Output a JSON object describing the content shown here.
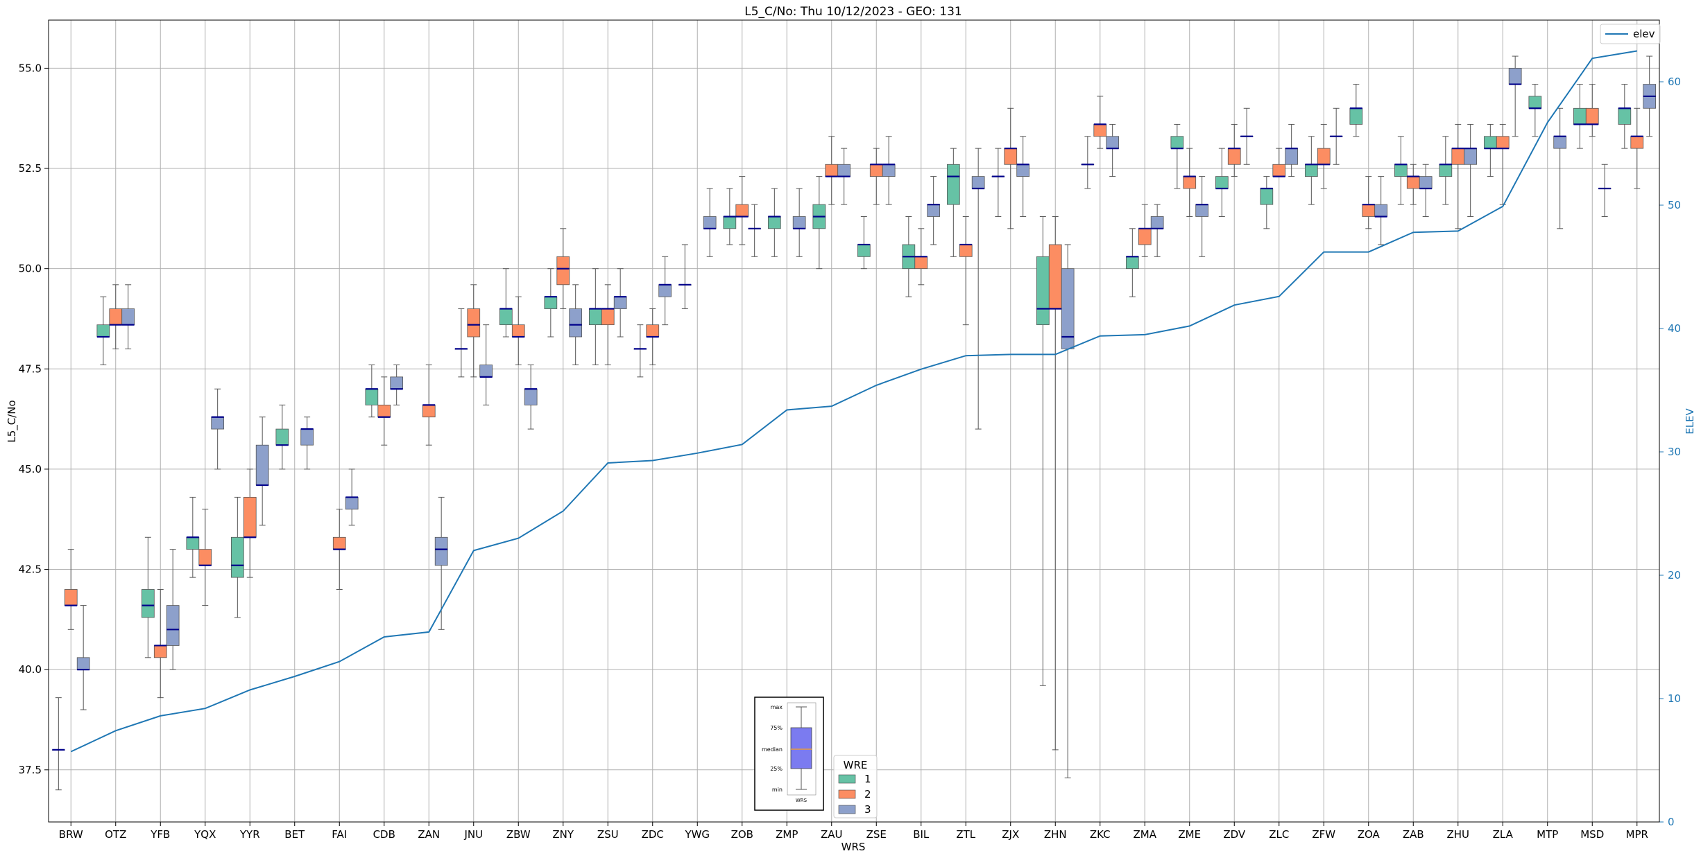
{
  "chart_data": {
    "type": "box",
    "title": "L5_C/No: Thu 10/12/2023 - GEO: 131",
    "xlabel": "WRS",
    "ylabel": "L5_C/No",
    "y2label": "ELEV",
    "ylim": [
      36.2,
      56.2
    ],
    "y2lim": [
      0,
      65
    ],
    "yticks": [
      "37.5",
      "40.0",
      "42.5",
      "45.0",
      "47.5",
      "50.0",
      "52.5",
      "55.0"
    ],
    "y2ticks": [
      "0",
      "10",
      "20",
      "30",
      "40",
      "50",
      "60"
    ],
    "grid": true,
    "categories": [
      "BRW",
      "OTZ",
      "YFB",
      "YQX",
      "YYR",
      "BET",
      "FAI",
      "CDB",
      "ZAN",
      "JNU",
      "ZBW",
      "ZNY",
      "ZSU",
      "ZDC",
      "YWG",
      "ZOB",
      "ZMP",
      "ZAU",
      "ZSE",
      "BIL",
      "ZTL",
      "ZJX",
      "ZHN",
      "ZKC",
      "ZMA",
      "ZME",
      "ZDV",
      "ZLC",
      "ZFW",
      "ZOA",
      "ZAB",
      "ZHU",
      "ZLA",
      "MTP",
      "MSD",
      "MPR"
    ],
    "series": [
      {
        "name": "1",
        "color": "#66c2a5",
        "boxes": [
          [
            37.0,
            38.0,
            38.0,
            38.0,
            39.3
          ],
          [
            47.6,
            48.3,
            48.3,
            48.6,
            49.3
          ],
          [
            40.3,
            41.3,
            41.6,
            42.0,
            43.3
          ],
          [
            42.3,
            43.0,
            43.3,
            43.3,
            44.3
          ],
          [
            41.3,
            42.3,
            42.6,
            43.3,
            44.3
          ],
          [
            45.0,
            45.6,
            45.6,
            46.0,
            46.6
          ],
          null,
          [
            46.3,
            46.6,
            47.0,
            47.0,
            47.6
          ],
          null,
          [
            47.3,
            48.0,
            48.0,
            48.0,
            49.0
          ],
          [
            48.3,
            48.6,
            49.0,
            49.0,
            50.0
          ],
          [
            48.3,
            49.0,
            49.3,
            49.3,
            50.0
          ],
          [
            47.6,
            48.6,
            49.0,
            49.0,
            50.0
          ],
          [
            47.3,
            48.0,
            48.0,
            48.0,
            48.6
          ],
          [
            49.0,
            49.6,
            49.6,
            49.6,
            50.6
          ],
          [
            50.6,
            51.0,
            51.3,
            51.3,
            52.0
          ],
          [
            50.3,
            51.0,
            51.3,
            51.3,
            52.0
          ],
          [
            50.0,
            51.0,
            51.3,
            51.6,
            52.3
          ],
          [
            50.0,
            50.3,
            50.6,
            50.6,
            51.3
          ],
          [
            49.3,
            50.0,
            50.3,
            50.6,
            51.3
          ],
          [
            50.3,
            51.6,
            52.3,
            52.6,
            53.0
          ],
          [
            51.3,
            52.3,
            52.3,
            52.3,
            53.0
          ],
          [
            39.6,
            48.6,
            49.0,
            50.3,
            51.3
          ],
          [
            52.0,
            52.6,
            52.6,
            52.6,
            53.3
          ],
          [
            49.3,
            50.0,
            50.3,
            50.3,
            51.0
          ],
          [
            52.0,
            53.0,
            53.0,
            53.3,
            53.6
          ],
          [
            51.3,
            52.0,
            52.0,
            52.3,
            53.0
          ],
          [
            51.0,
            51.6,
            52.0,
            52.0,
            52.3
          ],
          [
            51.6,
            52.3,
            52.6,
            52.6,
            53.3
          ],
          [
            53.3,
            53.6,
            54.0,
            54.0,
            54.6
          ],
          [
            51.6,
            52.3,
            52.6,
            52.6,
            53.3
          ],
          [
            51.6,
            52.3,
            52.6,
            52.6,
            53.3
          ],
          [
            52.3,
            53.0,
            53.0,
            53.3,
            53.6
          ],
          [
            53.3,
            54.0,
            54.0,
            54.3,
            54.6
          ],
          [
            53.0,
            53.6,
            53.6,
            54.0,
            54.6
          ],
          [
            53.0,
            53.6,
            54.0,
            54.0,
            54.6
          ]
        ]
      },
      {
        "name": "2",
        "color": "#fc8d62",
        "boxes": [
          [
            41.0,
            41.6,
            41.6,
            42.0,
            43.0
          ],
          [
            48.0,
            48.6,
            48.6,
            49.0,
            49.6
          ],
          [
            39.3,
            40.3,
            40.6,
            40.6,
            42.0
          ],
          [
            41.6,
            42.6,
            42.6,
            43.0,
            44.0
          ],
          [
            42.3,
            43.3,
            43.3,
            44.3,
            45.0
          ],
          null,
          [
            42.0,
            43.0,
            43.0,
            43.3,
            44.0
          ],
          [
            45.6,
            46.3,
            46.3,
            46.6,
            47.3
          ],
          [
            45.6,
            46.3,
            46.6,
            46.6,
            47.6
          ],
          [
            47.3,
            48.3,
            48.6,
            49.0,
            49.6
          ],
          [
            47.6,
            48.3,
            48.3,
            48.6,
            49.3
          ],
          [
            49.0,
            49.6,
            50.0,
            50.3,
            51.0
          ],
          [
            47.6,
            48.6,
            49.0,
            49.0,
            49.6
          ],
          [
            47.6,
            48.3,
            48.3,
            48.6,
            49.0
          ],
          null,
          [
            50.6,
            51.3,
            51.3,
            51.6,
            52.3
          ],
          null,
          [
            51.6,
            52.3,
            52.3,
            52.6,
            53.3
          ],
          [
            51.6,
            52.3,
            52.6,
            52.6,
            53.0
          ],
          [
            49.6,
            50.0,
            50.3,
            50.3,
            51.0
          ],
          [
            48.6,
            50.3,
            50.6,
            50.6,
            51.3
          ],
          [
            51.0,
            52.6,
            53.0,
            53.0,
            54.0
          ],
          [
            38.0,
            49.0,
            49.0,
            50.6,
            51.3
          ],
          [
            53.0,
            53.3,
            53.6,
            53.6,
            54.3
          ],
          [
            50.3,
            50.6,
            51.0,
            51.0,
            51.6
          ],
          [
            51.3,
            52.0,
            52.3,
            52.3,
            53.0
          ],
          [
            52.3,
            52.6,
            53.0,
            53.0,
            53.6
          ],
          [
            52.3,
            52.3,
            52.3,
            52.6,
            53.0
          ],
          [
            52.0,
            52.6,
            52.6,
            53.0,
            53.6
          ],
          [
            51.0,
            51.3,
            51.6,
            51.6,
            52.3
          ],
          [
            51.6,
            52.0,
            52.3,
            52.3,
            52.6
          ],
          [
            51.0,
            52.6,
            53.0,
            53.0,
            53.6
          ],
          [
            51.6,
            53.0,
            53.0,
            53.3,
            53.6
          ],
          null,
          [
            53.3,
            53.6,
            53.6,
            54.0,
            54.6
          ],
          [
            52.0,
            53.0,
            53.3,
            53.3,
            54.0
          ]
        ]
      },
      {
        "name": "3",
        "color": "#8da0cb",
        "boxes": [
          [
            39.0,
            40.0,
            40.0,
            40.3,
            41.6
          ],
          [
            48.0,
            48.6,
            48.6,
            49.0,
            49.6
          ],
          [
            40.0,
            40.6,
            41.0,
            41.6,
            43.0
          ],
          [
            45.0,
            46.0,
            46.3,
            46.3,
            47.0
          ],
          [
            43.6,
            44.6,
            44.6,
            45.6,
            46.3
          ],
          [
            45.0,
            45.6,
            46.0,
            46.0,
            46.3
          ],
          [
            43.6,
            44.0,
            44.3,
            44.3,
            45.0
          ],
          [
            46.6,
            47.0,
            47.0,
            47.3,
            47.6
          ],
          [
            41.0,
            42.6,
            43.0,
            43.3,
            44.3
          ],
          [
            46.6,
            47.3,
            47.3,
            47.6,
            48.6
          ],
          [
            46.0,
            46.6,
            47.0,
            47.0,
            47.6
          ],
          [
            47.6,
            48.3,
            48.6,
            49.0,
            49.6
          ],
          [
            48.3,
            49.0,
            49.3,
            49.3,
            50.0
          ],
          [
            48.6,
            49.3,
            49.6,
            49.6,
            50.3
          ],
          [
            50.3,
            51.0,
            51.0,
            51.3,
            52.0
          ],
          [
            50.3,
            51.0,
            51.0,
            51.0,
            51.6
          ],
          [
            50.3,
            51.0,
            51.0,
            51.3,
            52.0
          ],
          [
            51.6,
            52.3,
            52.3,
            52.6,
            53.0
          ],
          [
            51.6,
            52.3,
            52.6,
            52.6,
            53.3
          ],
          [
            50.6,
            51.3,
            51.6,
            51.6,
            52.3
          ],
          [
            46.0,
            52.0,
            52.0,
            52.3,
            53.0
          ],
          [
            51.3,
            52.3,
            52.6,
            52.6,
            53.3
          ],
          [
            37.3,
            48.0,
            48.3,
            50.0,
            50.6
          ],
          [
            52.3,
            53.0,
            53.0,
            53.3,
            53.6
          ],
          [
            50.3,
            51.0,
            51.0,
            51.3,
            51.6
          ],
          [
            50.3,
            51.3,
            51.6,
            51.6,
            52.3
          ],
          [
            52.6,
            53.3,
            53.3,
            53.3,
            54.0
          ],
          [
            52.3,
            52.6,
            53.0,
            53.0,
            53.6
          ],
          [
            52.6,
            53.3,
            53.3,
            53.3,
            54.0
          ],
          [
            50.6,
            51.3,
            51.3,
            51.6,
            52.3
          ],
          [
            51.3,
            52.0,
            52.0,
            52.3,
            52.6
          ],
          [
            51.3,
            52.6,
            53.0,
            53.0,
            53.6
          ],
          [
            53.3,
            54.6,
            54.6,
            55.0,
            55.3
          ],
          [
            51.0,
            53.0,
            53.3,
            53.3,
            54.0
          ],
          [
            51.3,
            52.0,
            52.0,
            52.0,
            52.6
          ],
          [
            53.3,
            54.0,
            54.3,
            54.6,
            55.3
          ]
        ]
      }
    ],
    "line": {
      "name": "elev",
      "color": "#1f77b4",
      "values": [
        5.7,
        7.4,
        8.6,
        9.2,
        10.7,
        11.8,
        13.0,
        15.0,
        15.4,
        22.0,
        23.0,
        25.2,
        29.1,
        29.3,
        29.9,
        30.6,
        33.4,
        33.7,
        35.4,
        36.7,
        37.8,
        37.9,
        37.9,
        39.4,
        39.5,
        40.2,
        41.9,
        42.6,
        46.2,
        46.2,
        47.8,
        47.9,
        49.9,
        56.7,
        61.9,
        62.5
      ]
    },
    "legend_box_title": "WRE",
    "legend_line_position": "top-right",
    "legend_box_position": "bottom-center",
    "inset_labels": [
      "max",
      "75%",
      "median",
      "25%",
      "min",
      "WRS"
    ]
  }
}
